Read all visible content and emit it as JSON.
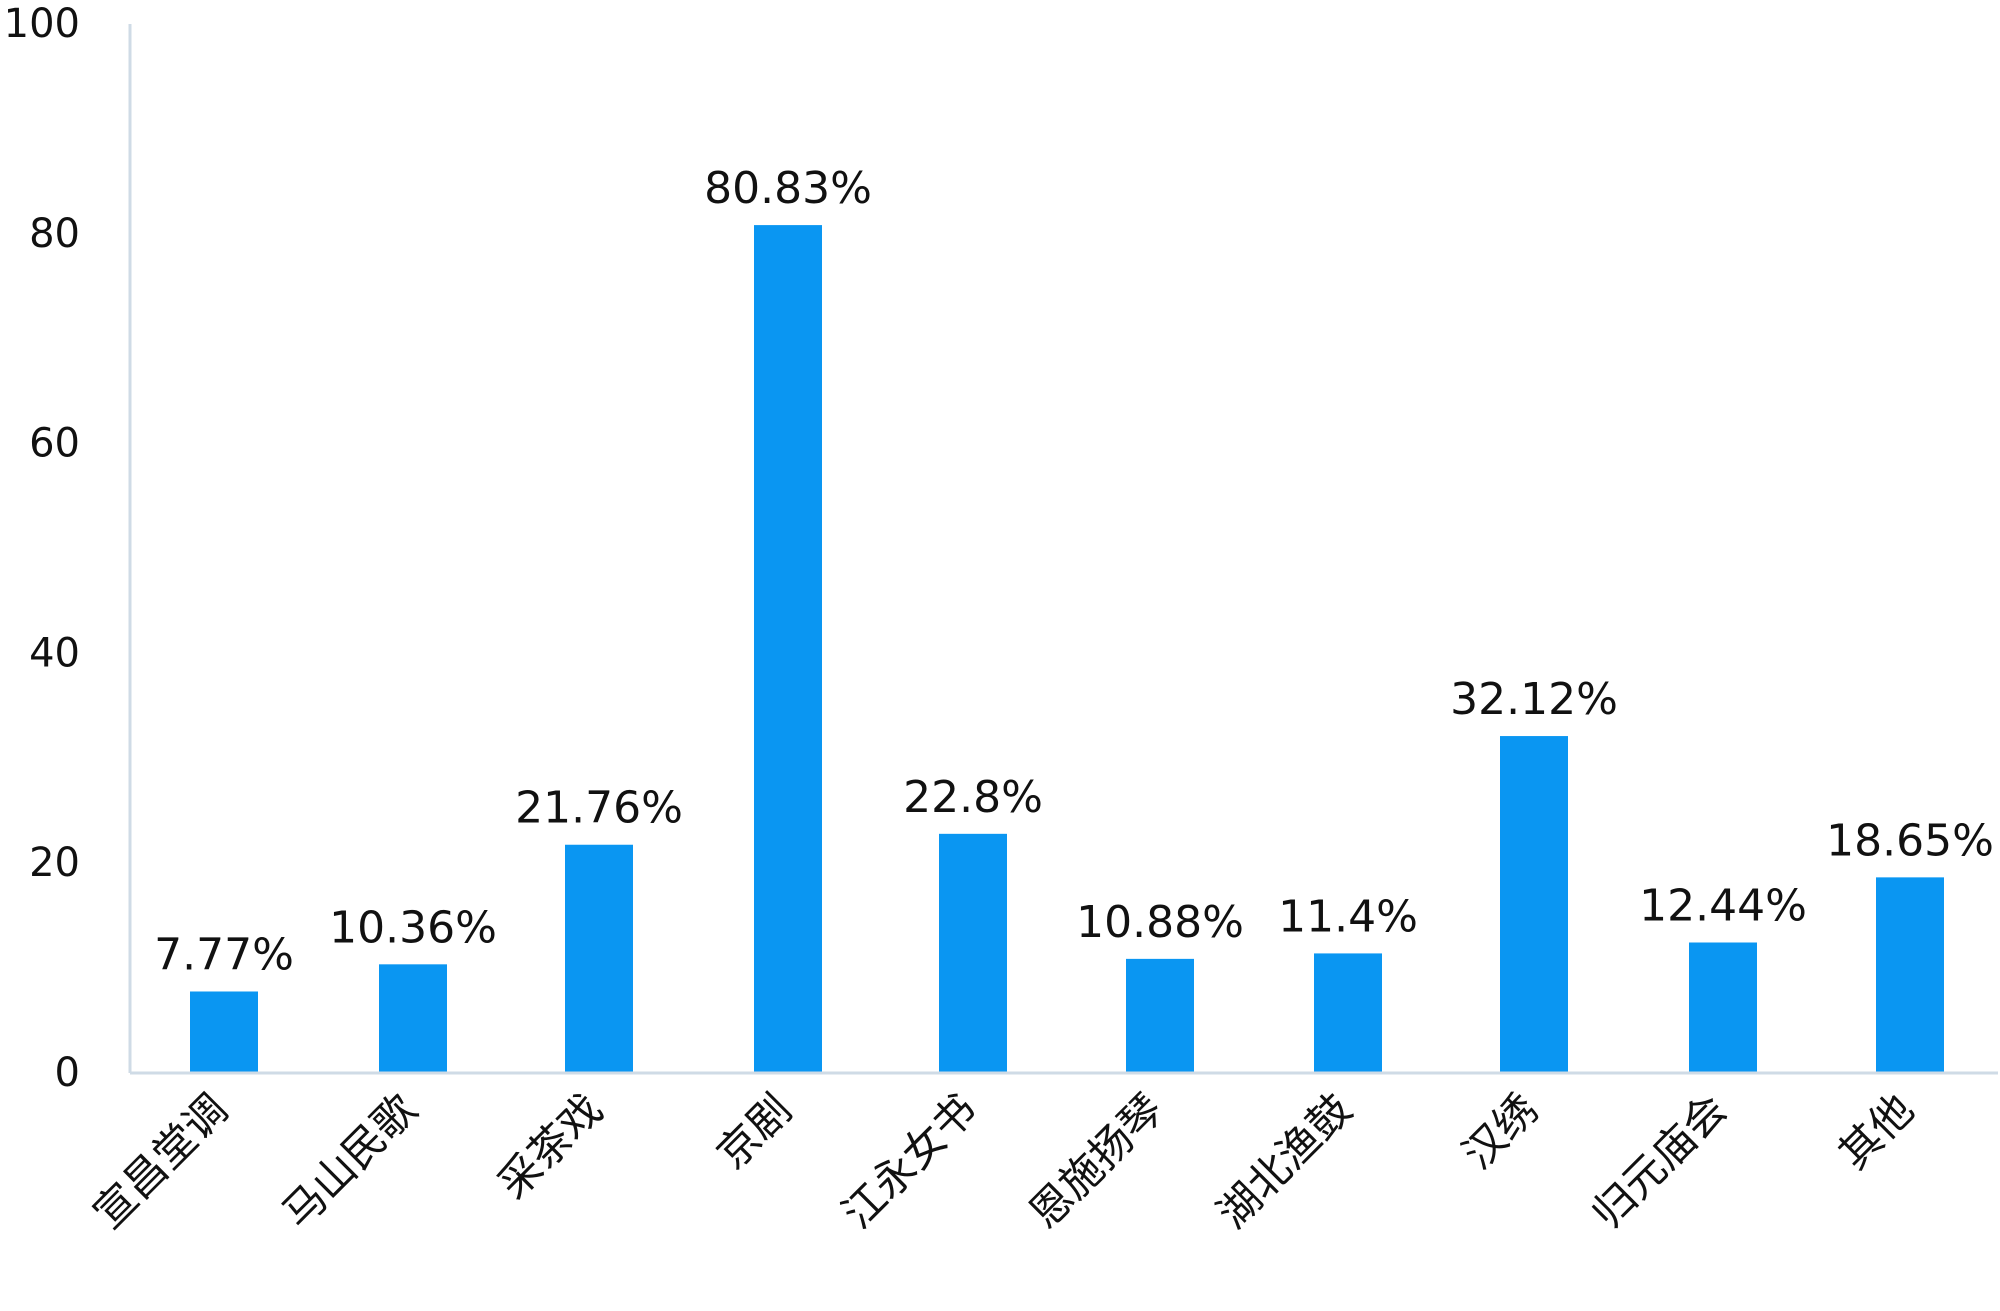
{
  "chart_data": {
    "type": "bar",
    "categories": [
      "宣昌堂调",
      "马山民歌",
      "采茶戏",
      "京剧",
      "江永女书",
      "恩施扬琴",
      "湖北渔鼓",
      "汉绣",
      "归元庙会",
      "其他"
    ],
    "values": [
      7.77,
      10.36,
      21.76,
      80.83,
      22.8,
      10.88,
      11.4,
      32.12,
      12.44,
      18.65
    ],
    "data_labels": [
      "7.77%",
      "10.36%",
      "21.76%",
      "80.83%",
      "22.8%",
      "10.88%",
      "11.4%",
      "32.12%",
      "12.44%",
      "18.65%"
    ],
    "y_ticks": [
      0,
      20,
      40,
      60,
      80,
      100
    ],
    "y_tick_labels": [
      "0",
      "20",
      "40",
      "60",
      "80",
      "100"
    ],
    "ylim": [
      0,
      100
    ],
    "title": "",
    "xlabel": "",
    "ylabel": "",
    "grid": false,
    "legend": "none",
    "colors": {
      "bar": "#0a96f2",
      "axis": "#cfdbe6",
      "text": "#111111"
    }
  }
}
